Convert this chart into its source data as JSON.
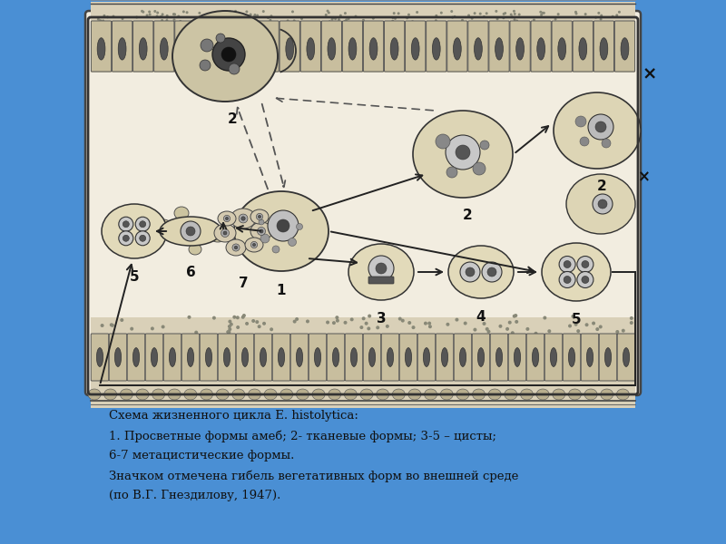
{
  "bg_color": "#4a8fd4",
  "panel_color": "#f2ede0",
  "tissue_color": "#d9d0b8",
  "cell_face": "#c8be9e",
  "cell_edge": "#555555",
  "nucleus_face": "#666666",
  "amoeba_face": "#ddd5b5",
  "amoeba_edge": "#333333",
  "cyst_face": "#e2daba",
  "arrow_color": "#222222",
  "text_color": "#111111",
  "line1": "Схема жизненного цикла E. histolytica:",
  "line2": "1. Просветные формы амеб; 2- тканевые формы; 3-5 – цисты;",
  "line3": "6-7 метацистические формы.",
  "line4": "Значком отмечена гибель вегетативных форм во внешней среде",
  "line5": "(по В.Г. Гнездилову, 1947)."
}
